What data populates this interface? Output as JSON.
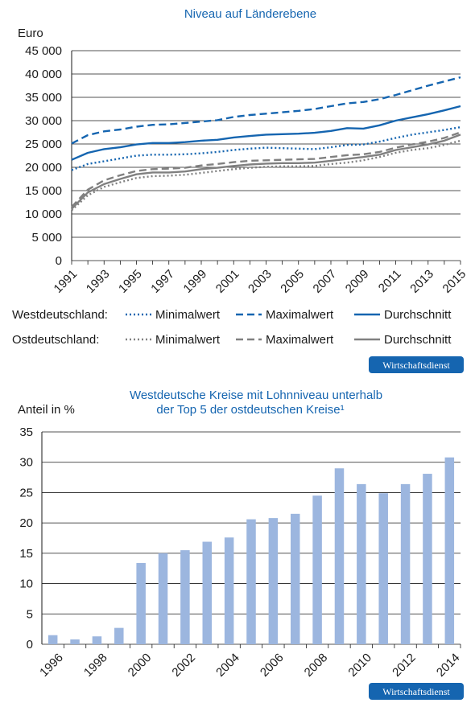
{
  "colors": {
    "west": "#1565b0",
    "ost": "#808080",
    "bar": "#9cb6df",
    "title": "#1565b0",
    "badge": "#1565b0",
    "grid": "#1a1a1a"
  },
  "badge": {
    "label": "Wirtschaftsdienst"
  },
  "chart_data": [
    {
      "type": "line",
      "title": "Niveau auf Länderebene",
      "ylabel": "Euro",
      "ylim": [
        0,
        45000
      ],
      "y_ticks": [
        {
          "value": 0,
          "label": "0"
        },
        {
          "value": 5000,
          "label": "5 000"
        },
        {
          "value": 10000,
          "label": "10 000"
        },
        {
          "value": 15000,
          "label": "15 000"
        },
        {
          "value": 20000,
          "label": "20 000"
        },
        {
          "value": 25000,
          "label": "25 000"
        },
        {
          "value": 30000,
          "label": "30 000"
        },
        {
          "value": 35000,
          "label": "35 000"
        },
        {
          "value": 40000,
          "label": "40 000"
        },
        {
          "value": 45000,
          "label": "45 000"
        }
      ],
      "x": [
        1991,
        1992,
        1993,
        1994,
        1995,
        1996,
        1997,
        1998,
        1999,
        2000,
        2001,
        2002,
        2003,
        2004,
        2005,
        2006,
        2007,
        2008,
        2009,
        2010,
        2011,
        2012,
        2013,
        2014,
        2015
      ],
      "x_tick_labels": [
        "1991",
        "1993",
        "1995",
        "1997",
        "1999",
        "2001",
        "2003",
        "2005",
        "2007",
        "2009",
        "2011",
        "2013",
        "2015"
      ],
      "grid": true,
      "legend_groups": [
        {
          "label": "Westdeutschland:",
          "items": [
            "Minimalwert",
            "Maximalwert",
            "Durchschnitt"
          ]
        },
        {
          "label": "Ostdeutschland:",
          "items": [
            "Minimalwert",
            "Maximalwert",
            "Durchschnitt"
          ]
        }
      ],
      "series": [
        {
          "group": "Westdeutschland",
          "name": "Minimalwert",
          "style": "dotted",
          "color": "#1565b0",
          "values": [
            19400,
            20700,
            21300,
            21900,
            22500,
            22700,
            22700,
            22800,
            23000,
            23300,
            23700,
            24000,
            24200,
            24100,
            24000,
            23900,
            24300,
            24800,
            24900,
            25500,
            26300,
            27000,
            27500,
            28000,
            28600
          ]
        },
        {
          "group": "Westdeutschland",
          "name": "Maximalwert",
          "style": "dashed",
          "color": "#1565b0",
          "values": [
            25100,
            26900,
            27700,
            28100,
            28700,
            29100,
            29200,
            29500,
            29800,
            30100,
            30800,
            31200,
            31500,
            31800,
            32100,
            32500,
            33100,
            33700,
            34000,
            34600,
            35500,
            36500,
            37500,
            38400,
            39300
          ]
        },
        {
          "group": "Westdeutschland",
          "name": "Durchschnitt",
          "style": "solid",
          "color": "#1565b0",
          "values": [
            21600,
            23100,
            23900,
            24300,
            24900,
            25200,
            25200,
            25400,
            25700,
            25900,
            26400,
            26700,
            27000,
            27100,
            27200,
            27400,
            27800,
            28400,
            28300,
            29000,
            30000,
            30700,
            31400,
            32200,
            33100
          ]
        },
        {
          "group": "Ostdeutschland",
          "name": "Minimalwert",
          "style": "dotted",
          "color": "#808080",
          "values": [
            10800,
            14000,
            15800,
            16800,
            17700,
            18100,
            18200,
            18400,
            18800,
            19200,
            19600,
            19900,
            20100,
            20200,
            20200,
            20300,
            20700,
            21000,
            21500,
            22200,
            23100,
            23700,
            24100,
            24800,
            25700
          ]
        },
        {
          "group": "Ostdeutschland",
          "name": "Maximalwert",
          "style": "dashed",
          "color": "#808080",
          "values": [
            11500,
            15200,
            17200,
            18300,
            19200,
            19600,
            19700,
            19900,
            20400,
            20700,
            21100,
            21400,
            21500,
            21600,
            21700,
            21800,
            22200,
            22600,
            22800,
            23300,
            24200,
            24900,
            25500,
            26300,
            27500
          ]
        },
        {
          "group": "Ostdeutschland",
          "name": "Durchschnitt",
          "style": "solid",
          "color": "#808080",
          "values": [
            11100,
            14600,
            16400,
            17500,
            18500,
            18900,
            18900,
            19100,
            19600,
            19900,
            20300,
            20600,
            20800,
            20900,
            20900,
            21000,
            21400,
            21800,
            22200,
            22700,
            23700,
            24300,
            24900,
            25700,
            27000
          ]
        }
      ]
    },
    {
      "type": "bar",
      "title_lines": [
        "Westdeutsche Kreise mit Lohnniveau unterhalb",
        "der Top 5 der ostdeutschen Kreise¹"
      ],
      "ylabel": "Anteil in %",
      "ylim": [
        0,
        35
      ],
      "y_ticks": [
        {
          "value": 0,
          "label": "0"
        },
        {
          "value": 5,
          "label": "5"
        },
        {
          "value": 10,
          "label": "10"
        },
        {
          "value": 15,
          "label": "15"
        },
        {
          "value": 20,
          "label": "20"
        },
        {
          "value": 25,
          "label": "25"
        },
        {
          "value": 30,
          "label": "30"
        },
        {
          "value": 35,
          "label": "35"
        }
      ],
      "categories": [
        1996,
        1997,
        1998,
        1999,
        2000,
        2001,
        2002,
        2003,
        2004,
        2005,
        2006,
        2007,
        2008,
        2009,
        2010,
        2011,
        2012,
        2013,
        2014
      ],
      "x_tick_labels": [
        "1996",
        "1998",
        "2000",
        "2002",
        "2004",
        "2006",
        "2008",
        "2010",
        "2012",
        "2014"
      ],
      "values": [
        1.5,
        0.8,
        1.3,
        2.7,
        13.4,
        15.0,
        15.5,
        16.9,
        17.6,
        20.6,
        20.8,
        21.5,
        24.5,
        29.0,
        26.4,
        24.9,
        26.4,
        28.1,
        30.8
      ],
      "grid": true
    }
  ]
}
